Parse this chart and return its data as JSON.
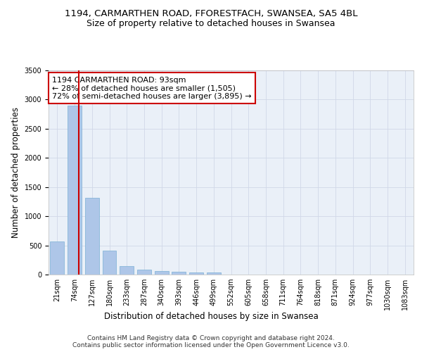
{
  "title_line1": "1194, CARMARTHEN ROAD, FFORESTFACH, SWANSEA, SA5 4BL",
  "title_line2": "Size of property relative to detached houses in Swansea",
  "xlabel": "Distribution of detached houses by size in Swansea",
  "ylabel": "Number of detached properties",
  "categories": [
    "21sqm",
    "74sqm",
    "127sqm",
    "180sqm",
    "233sqm",
    "287sqm",
    "340sqm",
    "393sqm",
    "446sqm",
    "499sqm",
    "552sqm",
    "605sqm",
    "658sqm",
    "711sqm",
    "764sqm",
    "818sqm",
    "871sqm",
    "924sqm",
    "977sqm",
    "1030sqm",
    "1083sqm"
  ],
  "values": [
    570,
    2900,
    1310,
    410,
    150,
    80,
    55,
    50,
    40,
    35,
    0,
    0,
    0,
    0,
    0,
    0,
    0,
    0,
    0,
    0,
    0
  ],
  "bar_color": "#aec6e8",
  "bar_edge_color": "#7aafd4",
  "grid_color": "#d0d8e8",
  "background_color": "#eaf0f8",
  "vline_x": 1.25,
  "vline_color": "#cc0000",
  "annotation_text": "1194 CARMARTHEN ROAD: 93sqm\n← 28% of detached houses are smaller (1,505)\n72% of semi-detached houses are larger (3,895) →",
  "annotation_box_color": "#ffffff",
  "annotation_border_color": "#cc0000",
  "ylim": [
    0,
    3500
  ],
  "yticks": [
    0,
    500,
    1000,
    1500,
    2000,
    2500,
    3000,
    3500
  ],
  "footer": "Contains HM Land Registry data © Crown copyright and database right 2024.\nContains public sector information licensed under the Open Government Licence v3.0.",
  "title_fontsize": 9.5,
  "subtitle_fontsize": 9,
  "axis_label_fontsize": 8.5,
  "tick_fontsize": 7,
  "annotation_fontsize": 8,
  "footer_fontsize": 6.5
}
